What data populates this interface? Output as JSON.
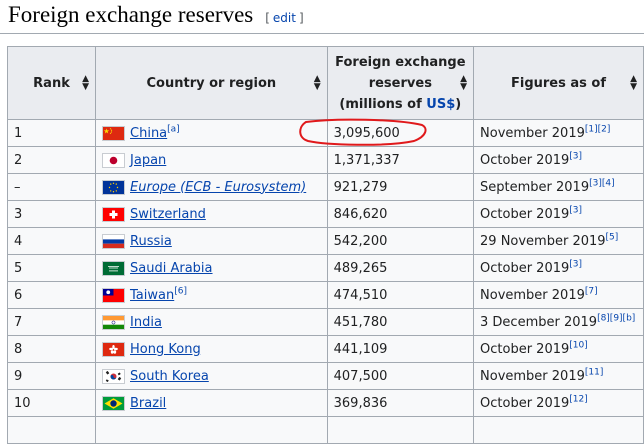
{
  "heading": {
    "title": "Foreign exchange reserves",
    "edit_open": "[",
    "edit_label": "edit",
    "edit_close": "]"
  },
  "table": {
    "headers": {
      "rank": "Rank",
      "country": "Country or region",
      "reserves_line1": "Foreign exchange",
      "reserves_line2": "reserves",
      "reserves_line3_pre": "(millions of ",
      "reserves_line3_link": "US$",
      "reserves_line3_post": ")",
      "figures": "Figures as of"
    },
    "rows": [
      {
        "rank": "1",
        "country": "China",
        "country_sup": "[a]",
        "flag": "china-flag-icon",
        "reserves": "3,095,600",
        "date": "November 2019",
        "date_sup": "[1][2]"
      },
      {
        "rank": "2",
        "country": "Japan",
        "country_sup": "",
        "flag": "japan-flag-icon",
        "reserves": "1,371,337",
        "date": "October 2019",
        "date_sup": "[3]"
      },
      {
        "rank": "–",
        "country": "Europe (ECB - Eurosystem)",
        "country_sup": "",
        "flag": "eu-flag-icon",
        "reserves": "921,279",
        "date": "September 2019",
        "date_sup": "[3][4]"
      },
      {
        "rank": "3",
        "country": "Switzerland",
        "country_sup": "",
        "flag": "switzerland-flag-icon",
        "reserves": "846,620",
        "date": "October 2019",
        "date_sup": "[3]"
      },
      {
        "rank": "4",
        "country": "Russia",
        "country_sup": "",
        "flag": "russia-flag-icon",
        "reserves": "542,200",
        "date": "29 November 2019",
        "date_sup": "[5]"
      },
      {
        "rank": "5",
        "country": "Saudi Arabia",
        "country_sup": "",
        "flag": "saudi-arabia-flag-icon",
        "reserves": "489,265",
        "date": "October 2019",
        "date_sup": "[3]"
      },
      {
        "rank": "6",
        "country": "Taiwan",
        "country_sup": "[6]",
        "flag": "taiwan-flag-icon",
        "reserves": "474,510",
        "date": "November 2019",
        "date_sup": "[7]"
      },
      {
        "rank": "7",
        "country": "India",
        "country_sup": "",
        "flag": "india-flag-icon",
        "reserves": "451,780",
        "date": "3 December 2019",
        "date_sup": "[8][9][b]"
      },
      {
        "rank": "8",
        "country": "Hong Kong",
        "country_sup": "",
        "flag": "hong-kong-flag-icon",
        "reserves": "441,109",
        "date": "October 2019",
        "date_sup": "[10]"
      },
      {
        "rank": "9",
        "country": "South Korea",
        "country_sup": "",
        "flag": "south-korea-flag-icon",
        "reserves": "407,500",
        "date": "November 2019",
        "date_sup": "[11]"
      },
      {
        "rank": "10",
        "country": "Brazil",
        "country_sup": "",
        "flag": "brazil-flag-icon",
        "reserves": "369,836",
        "date": "October 2019",
        "date_sup": "[12]"
      }
    ]
  },
  "colors": {
    "link": "#0645ad",
    "header_bg": "#eaecf0",
    "cell_bg": "#f8f9fa",
    "border": "#a2a9b1",
    "annotation": "#e0191b"
  }
}
